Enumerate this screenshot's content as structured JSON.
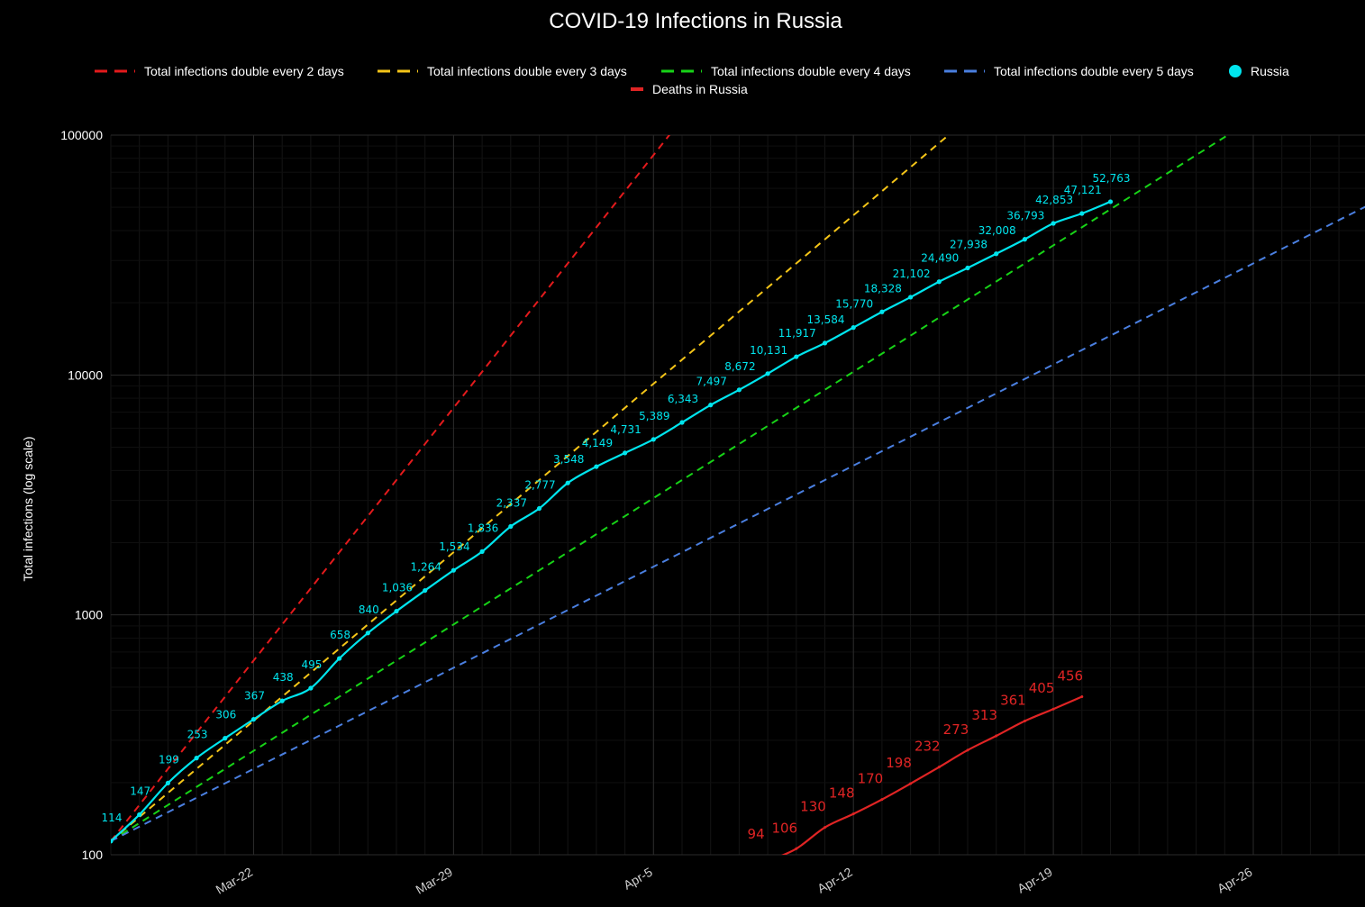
{
  "chart_data": {
    "type": "line",
    "title": "COVID-19 Infections in Russia",
    "xlabel": "",
    "ylabel": "Total infections (log scale)",
    "yscale": "log",
    "ylim": [
      100,
      100000
    ],
    "y_ticks": [
      "100",
      "1000",
      "10000",
      "100000"
    ],
    "x_ticks": [
      "Mar-22",
      "Mar-29",
      "Apr-5",
      "Apr-12",
      "Apr-19",
      "Apr-26"
    ],
    "xlim": [
      "2020-03-17",
      "2020-04-30"
    ],
    "grid": true,
    "legend_position": "top",
    "colors": {
      "background": "#000000",
      "russia": "#00e5ee",
      "deaths": "#e02424",
      "double2": "#e31a1c",
      "double3": "#f5c518",
      "double4": "#17d317",
      "double5": "#4a7fe0"
    },
    "doubling_lines": [
      {
        "name": "Total infections double every 2 days",
        "doubling_days": 2,
        "start_date": "2020-03-17",
        "start_value": 114,
        "color_key": "double2"
      },
      {
        "name": "Total infections double every 3 days",
        "doubling_days": 3,
        "start_date": "2020-03-17",
        "start_value": 114,
        "color_key": "double3"
      },
      {
        "name": "Total infections double every 4 days",
        "doubling_days": 4,
        "start_date": "2020-03-17",
        "start_value": 114,
        "color_key": "double4"
      },
      {
        "name": "Total infections double every 5 days",
        "doubling_days": 5,
        "start_date": "2020-03-17",
        "start_value": 114,
        "color_key": "double5"
      }
    ],
    "series": [
      {
        "name": "Russia",
        "color_key": "russia",
        "points": [
          {
            "date": "2020-03-17",
            "value": 114,
            "label": "114"
          },
          {
            "date": "2020-03-18",
            "value": 147,
            "label": "147"
          },
          {
            "date": "2020-03-19",
            "value": 199,
            "label": "199"
          },
          {
            "date": "2020-03-20",
            "value": 253,
            "label": "253"
          },
          {
            "date": "2020-03-21",
            "value": 306,
            "label": "306"
          },
          {
            "date": "2020-03-22",
            "value": 367,
            "label": "367"
          },
          {
            "date": "2020-03-23",
            "value": 438,
            "label": "438"
          },
          {
            "date": "2020-03-24",
            "value": 495,
            "label": "495"
          },
          {
            "date": "2020-03-25",
            "value": 658,
            "label": "658"
          },
          {
            "date": "2020-03-26",
            "value": 840,
            "label": "840"
          },
          {
            "date": "2020-03-27",
            "value": 1036,
            "label": "1,036"
          },
          {
            "date": "2020-03-28",
            "value": 1264,
            "label": "1,264"
          },
          {
            "date": "2020-03-29",
            "value": 1534,
            "label": "1,534"
          },
          {
            "date": "2020-03-30",
            "value": 1836,
            "label": "1,836"
          },
          {
            "date": "2020-03-31",
            "value": 2337,
            "label": "2,337"
          },
          {
            "date": "2020-04-01",
            "value": 2777,
            "label": "2,777"
          },
          {
            "date": "2020-04-02",
            "value": 3548,
            "label": "3,548"
          },
          {
            "date": "2020-04-03",
            "value": 4149,
            "label": "4,149"
          },
          {
            "date": "2020-04-04",
            "value": 4731,
            "label": "4,731"
          },
          {
            "date": "2020-04-05",
            "value": 5389,
            "label": "5,389"
          },
          {
            "date": "2020-04-06",
            "value": 6343,
            "label": "6,343"
          },
          {
            "date": "2020-04-07",
            "value": 7497,
            "label": "7,497"
          },
          {
            "date": "2020-04-08",
            "value": 8672,
            "label": "8,672"
          },
          {
            "date": "2020-04-09",
            "value": 10131,
            "label": "10,131"
          },
          {
            "date": "2020-04-10",
            "value": 11917,
            "label": "11,917"
          },
          {
            "date": "2020-04-11",
            "value": 13584,
            "label": "13,584"
          },
          {
            "date": "2020-04-12",
            "value": 15770,
            "label": "15,770"
          },
          {
            "date": "2020-04-13",
            "value": 18328,
            "label": "18,328"
          },
          {
            "date": "2020-04-14",
            "value": 21102,
            "label": "21,102"
          },
          {
            "date": "2020-04-15",
            "value": 24490,
            "label": "24,490"
          },
          {
            "date": "2020-04-16",
            "value": 27938,
            "label": "27,938"
          },
          {
            "date": "2020-04-17",
            "value": 32008,
            "label": "32,008"
          },
          {
            "date": "2020-04-18",
            "value": 36793,
            "label": "36,793"
          },
          {
            "date": "2020-04-19",
            "value": 42853,
            "label": "42,853"
          },
          {
            "date": "2020-04-20",
            "value": 47121,
            "label": "47,121"
          },
          {
            "date": "2020-04-21",
            "value": 52763,
            "label": "52,763"
          }
        ]
      },
      {
        "name": "Deaths in Russia",
        "color_key": "deaths",
        "points": [
          {
            "date": "2020-04-09",
            "value": 94,
            "label": "94"
          },
          {
            "date": "2020-04-10",
            "value": 106,
            "label": "106"
          },
          {
            "date": "2020-04-11",
            "value": 130,
            "label": "130"
          },
          {
            "date": "2020-04-12",
            "value": 148,
            "label": "148"
          },
          {
            "date": "2020-04-13",
            "value": 170,
            "label": "170"
          },
          {
            "date": "2020-04-14",
            "value": 198,
            "label": "198"
          },
          {
            "date": "2020-04-15",
            "value": 232,
            "label": "232"
          },
          {
            "date": "2020-04-16",
            "value": 273,
            "label": "273"
          },
          {
            "date": "2020-04-17",
            "value": 313,
            "label": "313"
          },
          {
            "date": "2020-04-18",
            "value": 361,
            "label": "361"
          },
          {
            "date": "2020-04-19",
            "value": 405,
            "label": "405"
          },
          {
            "date": "2020-04-20",
            "value": 456,
            "label": "456"
          }
        ]
      }
    ],
    "legend": [
      {
        "label": "Total infections double every 2 days",
        "color_key": "double2",
        "marker": "dash"
      },
      {
        "label": "Total infections double every 3 days",
        "color_key": "double3",
        "marker": "dash"
      },
      {
        "label": "Total infections double every 4 days",
        "color_key": "double4",
        "marker": "dash"
      },
      {
        "label": "Total infections double every 5 days",
        "color_key": "double5",
        "marker": "dash"
      },
      {
        "label": "Russia",
        "color_key": "russia",
        "marker": "circle"
      },
      {
        "label": "Deaths in Russia",
        "color_key": "deaths",
        "marker": "line"
      }
    ]
  }
}
